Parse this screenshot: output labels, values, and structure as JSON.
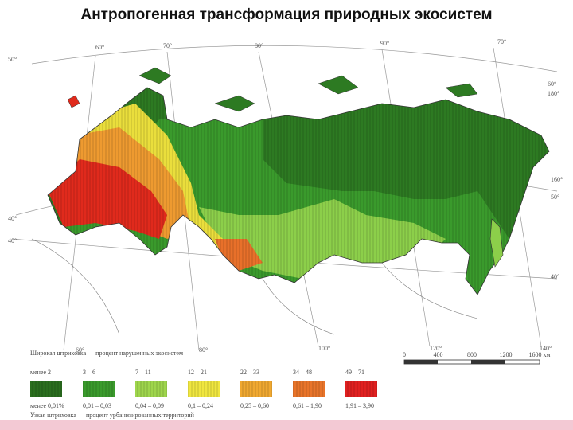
{
  "header": {
    "title": "Антропогенная трансформация природных экосистем"
  },
  "graticule_labels": [
    "60°",
    "70°",
    "80°",
    "90°",
    "70°",
    "50°",
    "60°",
    "180°",
    "160°",
    "50°",
    "40°",
    "40°",
    "40°",
    "60°",
    "80°",
    "100°",
    "120°",
    "140°"
  ],
  "legend": {
    "wide_hatch_caption": "Широкая штриховка — процент нарушенных экосистем",
    "disturbed_percent": [
      "менее 2",
      "3 – 6",
      "7 – 11",
      "12 – 21",
      "22 – 33",
      "34 – 48",
      "49 – 71"
    ],
    "urban_percent": [
      "менее 0,01%",
      "0,01 – 0,03",
      "0,04 – 0,09",
      "0,1 – 0,24",
      "0,25 – 0,60",
      "0,61 – 1,90",
      "1,91 – 3,90"
    ],
    "narrow_hatch_caption": "Узкая штриховка — процент урбанизированных территорий"
  },
  "scale": {
    "ticks": [
      "0",
      "400",
      "800",
      "1200",
      "1600 км"
    ]
  }
}
